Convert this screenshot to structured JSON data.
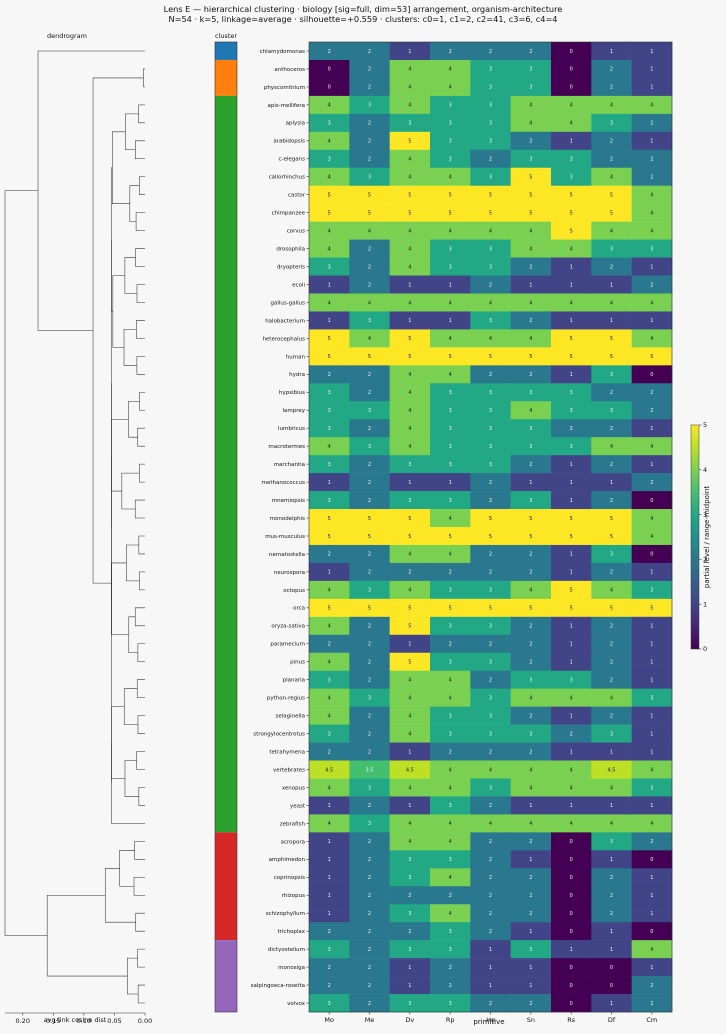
{
  "title_line1": "Lens E — hierarchical clustering · biology [sig=full, dim=53] arrangement, organism-architecture",
  "title_line2": "N=54 · k=5, linkage=average · silhouette=+0.559 · clusters: c0=1, c1=2, c2=41, c3=6, c4=4",
  "dendrogram_label": "dendrogram",
  "cluster_label": "cluster",
  "colorbar_label": "partial level / range-midpoint",
  "colors": {
    "c0": "#1f77b4",
    "c1": "#ff7f0e",
    "c2": "#2ca02c",
    "c3": "#d62728",
    "c4": "#9467bd"
  },
  "chart_data": {
    "type": "heatmap",
    "xlabel": "primitive",
    "dendrogram_xlabel": "avg-link cosine dist",
    "dendrogram_ticks": [
      "0.20",
      "0.15",
      "0.10",
      "0.05",
      "0.00"
    ],
    "dendrogram_tick_values": [
      0.2,
      0.15,
      0.1,
      0.05,
      0.0
    ],
    "colorbar_ticks": [
      "0",
      "1",
      "2",
      "3",
      "4",
      "5"
    ],
    "colorbar_range": [
      0,
      5
    ],
    "columns": [
      "Mo",
      "Me",
      "Dv",
      "Rp",
      "Ho",
      "Sn",
      "Rs",
      "Df",
      "Cm"
    ],
    "rows": [
      {
        "name": "chlamydomonas",
        "cluster": 0,
        "values": [
          "2",
          "2",
          "1",
          "2",
          "2",
          "2",
          "0",
          "1",
          "1"
        ]
      },
      {
        "name": "anthoceros",
        "cluster": 1,
        "values": [
          "0",
          "2",
          "4",
          "4",
          "3",
          "3",
          "0",
          "2",
          "1"
        ]
      },
      {
        "name": "physcomitrium",
        "cluster": 1,
        "values": [
          "0",
          "2",
          "4",
          "4",
          "3",
          "3",
          "0",
          "2",
          "1"
        ]
      },
      {
        "name": "apis-mellifera",
        "cluster": 2,
        "values": [
          "4",
          "3",
          "4",
          "3",
          "3",
          "4",
          "4",
          "4",
          "4"
        ]
      },
      {
        "name": "aplysia",
        "cluster": 2,
        "values": [
          "3",
          "2",
          "3",
          "3",
          "3",
          "4",
          "4",
          "3",
          "2"
        ]
      },
      {
        "name": "arabidopsis",
        "cluster": 2,
        "values": [
          "4",
          "2",
          "5",
          "3",
          "3",
          "2",
          "1",
          "2",
          "1"
        ]
      },
      {
        "name": "c-elegans",
        "cluster": 2,
        "values": [
          "3",
          "2",
          "4",
          "3",
          "2",
          "3",
          "3",
          "2",
          "2"
        ]
      },
      {
        "name": "callorhinchus",
        "cluster": 2,
        "values": [
          "4",
          "3",
          "4",
          "4",
          "3",
          "5",
          "3",
          "4",
          "2"
        ]
      },
      {
        "name": "castor",
        "cluster": 2,
        "values": [
          "5",
          "5",
          "5",
          "5",
          "5",
          "5",
          "5",
          "5",
          "4"
        ]
      },
      {
        "name": "chimpanzee",
        "cluster": 2,
        "values": [
          "5",
          "5",
          "5",
          "5",
          "5",
          "5",
          "5",
          "5",
          "4"
        ]
      },
      {
        "name": "corvus",
        "cluster": 2,
        "values": [
          "4",
          "4",
          "4",
          "4",
          "4",
          "4",
          "5",
          "4",
          "4"
        ]
      },
      {
        "name": "drosophila",
        "cluster": 2,
        "values": [
          "4",
          "2",
          "4",
          "3",
          "3",
          "4",
          "4",
          "3",
          "3"
        ]
      },
      {
        "name": "dryopteris",
        "cluster": 2,
        "values": [
          "3",
          "2",
          "4",
          "3",
          "3",
          "2",
          "1",
          "2",
          "1"
        ]
      },
      {
        "name": "ecoli",
        "cluster": 2,
        "values": [
          "1",
          "2",
          "1",
          "1",
          "2",
          "1",
          "1",
          "1",
          "2"
        ]
      },
      {
        "name": "gallus-gallus",
        "cluster": 2,
        "values": [
          "4",
          "4",
          "4",
          "4",
          "4",
          "4",
          "4",
          "4",
          "4"
        ]
      },
      {
        "name": "halobacterium",
        "cluster": 2,
        "values": [
          "1",
          "3",
          "1",
          "1",
          "3",
          "2",
          "1",
          "1",
          "1"
        ]
      },
      {
        "name": "heterocephalus",
        "cluster": 2,
        "values": [
          "5",
          "4",
          "5",
          "4",
          "4",
          "4",
          "5",
          "5",
          "4"
        ]
      },
      {
        "name": "human",
        "cluster": 2,
        "values": [
          "5",
          "5",
          "5",
          "5",
          "5",
          "5",
          "5",
          "5",
          "5"
        ]
      },
      {
        "name": "hydra",
        "cluster": 2,
        "values": [
          "2",
          "2",
          "4",
          "4",
          "2",
          "2",
          "1",
          "3",
          "0"
        ]
      },
      {
        "name": "hypsibius",
        "cluster": 2,
        "values": [
          "3",
          "2",
          "4",
          "3",
          "3",
          "3",
          "3",
          "2",
          "2"
        ]
      },
      {
        "name": "lamprey",
        "cluster": 2,
        "values": [
          "3",
          "3",
          "4",
          "3",
          "3",
          "4",
          "3",
          "3",
          "2"
        ]
      },
      {
        "name": "lumbricus",
        "cluster": 2,
        "values": [
          "3",
          "2",
          "4",
          "3",
          "3",
          "3",
          "2",
          "2",
          "1"
        ]
      },
      {
        "name": "macrotermes",
        "cluster": 2,
        "values": [
          "4",
          "3",
          "4",
          "3",
          "3",
          "3",
          "3",
          "4",
          "4"
        ]
      },
      {
        "name": "marchantia",
        "cluster": 2,
        "values": [
          "3",
          "2",
          "3",
          "3",
          "3",
          "2",
          "1",
          "2",
          "1"
        ]
      },
      {
        "name": "methanococcus",
        "cluster": 2,
        "values": [
          "1",
          "2",
          "1",
          "1",
          "2",
          "1",
          "1",
          "1",
          "2"
        ]
      },
      {
        "name": "mnemiopsis",
        "cluster": 2,
        "values": [
          "3",
          "2",
          "3",
          "3",
          "2",
          "3",
          "1",
          "2",
          "0"
        ]
      },
      {
        "name": "monodelphis",
        "cluster": 2,
        "values": [
          "5",
          "5",
          "5",
          "4",
          "5",
          "5",
          "5",
          "5",
          "4"
        ]
      },
      {
        "name": "mus-musculus",
        "cluster": 2,
        "values": [
          "5",
          "5",
          "5",
          "5",
          "5",
          "5",
          "5",
          "5",
          "4"
        ]
      },
      {
        "name": "nematostella",
        "cluster": 2,
        "values": [
          "2",
          "2",
          "4",
          "4",
          "2",
          "2",
          "1",
          "3",
          "0"
        ]
      },
      {
        "name": "neurospora",
        "cluster": 2,
        "values": [
          "1",
          "2",
          "2",
          "2",
          "2",
          "2",
          "1",
          "2",
          "1"
        ]
      },
      {
        "name": "octopus",
        "cluster": 2,
        "values": [
          "4",
          "3",
          "4",
          "3",
          "3",
          "4",
          "5",
          "4",
          "3"
        ]
      },
      {
        "name": "orca",
        "cluster": 2,
        "values": [
          "5",
          "5",
          "5",
          "5",
          "5",
          "5",
          "5",
          "5",
          "5"
        ]
      },
      {
        "name": "oryza-sativa",
        "cluster": 2,
        "values": [
          "4",
          "2",
          "5",
          "3",
          "3",
          "2",
          "1",
          "2",
          "1"
        ]
      },
      {
        "name": "paramecium",
        "cluster": 2,
        "values": [
          "2",
          "2",
          "1",
          "2",
          "2",
          "2",
          "1",
          "2",
          "1"
        ]
      },
      {
        "name": "pinus",
        "cluster": 2,
        "values": [
          "4",
          "2",
          "5",
          "3",
          "3",
          "2",
          "1",
          "2",
          "1"
        ]
      },
      {
        "name": "planaria",
        "cluster": 2,
        "values": [
          "3",
          "2",
          "4",
          "4",
          "2",
          "3",
          "3",
          "2",
          "1"
        ]
      },
      {
        "name": "python-regius",
        "cluster": 2,
        "values": [
          "4",
          "3",
          "4",
          "4",
          "3",
          "4",
          "4",
          "4",
          "3"
        ]
      },
      {
        "name": "selaginella",
        "cluster": 2,
        "values": [
          "4",
          "2",
          "4",
          "3",
          "3",
          "2",
          "1",
          "2",
          "1"
        ]
      },
      {
        "name": "strongylocentrotus",
        "cluster": 2,
        "values": [
          "3",
          "2",
          "4",
          "3",
          "3",
          "3",
          "2",
          "3",
          "1"
        ]
      },
      {
        "name": "tetrahymena",
        "cluster": 2,
        "values": [
          "2",
          "2",
          "1",
          "2",
          "2",
          "2",
          "1",
          "1",
          "1"
        ]
      },
      {
        "name": "vertebrates",
        "cluster": 2,
        "values": [
          "4.5",
          "3.5",
          "4.5",
          "4",
          "4",
          "4",
          "4",
          "4.5",
          "4"
        ]
      },
      {
        "name": "xenopus",
        "cluster": 2,
        "values": [
          "4",
          "3",
          "4",
          "4",
          "3",
          "4",
          "4",
          "4",
          "3"
        ]
      },
      {
        "name": "yeast",
        "cluster": 2,
        "values": [
          "1",
          "2",
          "1",
          "3",
          "2",
          "1",
          "1",
          "1",
          "1"
        ]
      },
      {
        "name": "zebrafish",
        "cluster": 2,
        "values": [
          "4",
          "3",
          "4",
          "4",
          "4",
          "4",
          "4",
          "4",
          "4"
        ]
      },
      {
        "name": "acropora",
        "cluster": 3,
        "values": [
          "1",
          "2",
          "4",
          "4",
          "2",
          "2",
          "0",
          "3",
          "2"
        ]
      },
      {
        "name": "amphimedon",
        "cluster": 3,
        "values": [
          "1",
          "2",
          "3",
          "3",
          "2",
          "1",
          "0",
          "1",
          "0"
        ]
      },
      {
        "name": "coprinopsis",
        "cluster": 3,
        "values": [
          "1",
          "2",
          "3",
          "4",
          "2",
          "2",
          "0",
          "2",
          "1"
        ]
      },
      {
        "name": "rhizopus",
        "cluster": 3,
        "values": [
          "1",
          "2",
          "2",
          "2",
          "2",
          "2",
          "0",
          "2",
          "1"
        ]
      },
      {
        "name": "schizophyllum",
        "cluster": 3,
        "values": [
          "1",
          "2",
          "3",
          "4",
          "2",
          "2",
          "0",
          "2",
          "1"
        ]
      },
      {
        "name": "trichoplax",
        "cluster": 3,
        "values": [
          "2",
          "2",
          "2",
          "3",
          "2",
          "1",
          "0",
          "1",
          "0"
        ]
      },
      {
        "name": "dictyostelium",
        "cluster": 4,
        "values": [
          "3",
          "2",
          "3",
          "3",
          "1",
          "3",
          "1",
          "1",
          "4"
        ]
      },
      {
        "name": "monosiga",
        "cluster": 4,
        "values": [
          "2",
          "2",
          "1",
          "2",
          "1",
          "1",
          "0",
          "0",
          "1"
        ]
      },
      {
        "name": "salpingoeca-rosetta",
        "cluster": 4,
        "values": [
          "2",
          "2",
          "1",
          "2",
          "1",
          "1",
          "0",
          "0",
          "2"
        ]
      },
      {
        "name": "volvox",
        "cluster": 4,
        "values": [
          "3",
          "2",
          "3",
          "3",
          "2",
          "2",
          "0",
          "1",
          "2"
        ]
      }
    ]
  }
}
